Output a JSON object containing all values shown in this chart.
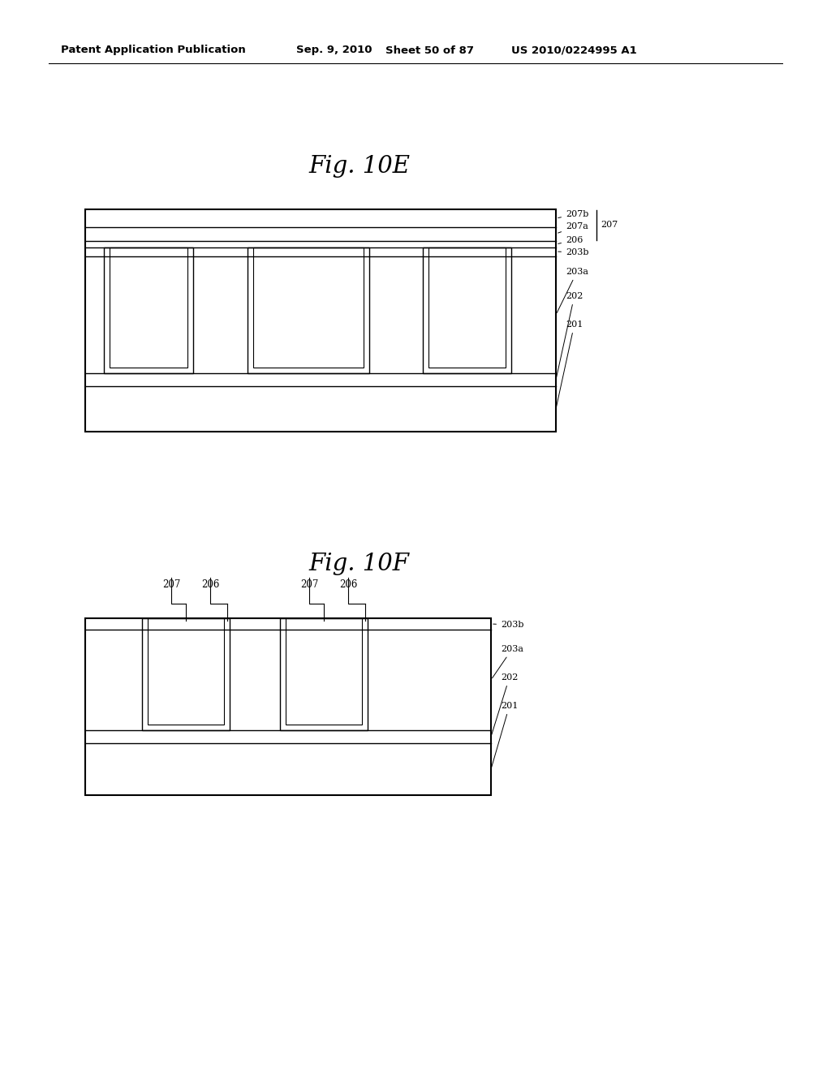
{
  "bg_color": "#ffffff",
  "header_text": "Patent Application Publication",
  "header_date": "Sep. 9, 2010",
  "header_sheet": "Sheet 50 of 87",
  "header_patent": "US 2010/0224995 A1",
  "fig1_title": "Fig. 10E",
  "fig2_title": "Fig. 10F",
  "line_color": "#000000"
}
